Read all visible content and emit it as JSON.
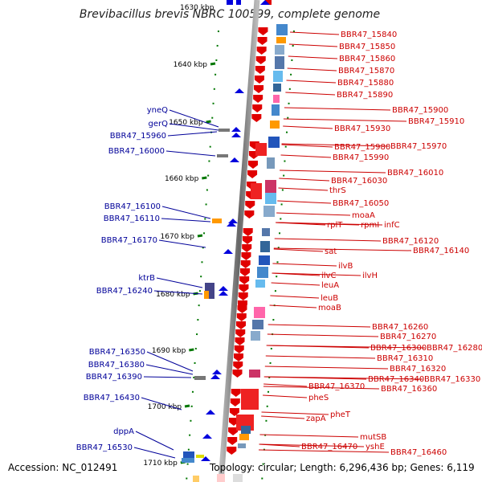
{
  "title": "Brevibacillus brevis NBRC 100599, complete genome",
  "top_tick_partial": "1630 kbp",
  "ticks": [
    "1640 kbp",
    "1650 kbp",
    "1660 kbp",
    "1670 kbp",
    "1680 kbp",
    "1690 kbp",
    "1700 kbp",
    "1710 kbp"
  ],
  "right_genes": [
    "BBR47_15840",
    "BBR47_15850",
    "BBR47_15860",
    "BBR47_15870",
    "BBR47_15880",
    "BBR47_15890",
    "BBR47_15900",
    "BBR47_15910",
    "BBR47_15930",
    "BBR47_15980",
    "BBR47_15970",
    "BBR47_15990",
    "BBR47_16010",
    "BBR47_16030",
    "thrS",
    "BBR47_16050",
    "moaA",
    "rplT",
    "rpmI",
    "infC",
    "BBR47_16120",
    "BBR47_16140",
    "sat",
    "ilvB",
    "ilvC",
    "ilvH",
    "leuA",
    "leuB",
    "moaB",
    "BBR47_16260",
    "BBR47_16270",
    "BBR47_16300",
    "BBR47_16280",
    "BBR47_16310",
    "BBR47_16320",
    "BBR47_16340",
    "BBR47_16330",
    "BBR47_16370",
    "BBR47_16360",
    "pheS",
    "pheT",
    "zapA",
    "mutSB",
    "BBR47_16470",
    "yshE",
    "BBR47_16460"
  ],
  "left_genes": [
    "yneQ",
    "gerQ",
    "BBR47_15960",
    "BBR47_16000",
    "BBR47_16100",
    "BBR47_16110",
    "BBR47_16170",
    "ktrB",
    "BBR47_16240",
    "BBR47_16350",
    "BBR47_16380",
    "BBR47_16390",
    "BBR47_16430",
    "dppA",
    "BBR47_16530"
  ],
  "footer": {
    "accession": "Accession: NC_012491",
    "topology": "Topology: circular; Length: 6,296,436 bp; Genes: 6,119"
  },
  "colors": {
    "forward_gene": "#e00000",
    "reverse_gene": "#0000dd",
    "right_label": "#cc0000",
    "left_label": "#000099",
    "dna_line": "#888888",
    "tick": "#007700"
  }
}
